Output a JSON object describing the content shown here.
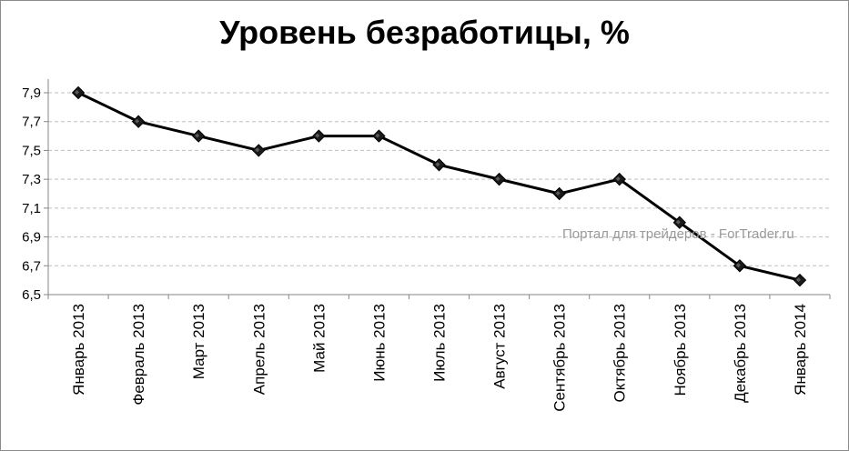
{
  "chart_data": {
    "type": "line",
    "title": "Уровень безработицы, %",
    "watermark": "Портал для трейдеров - ForTrader.ru",
    "categories": [
      "Январь 2013",
      "Февраль 2013",
      "Март 2013",
      "Апрель 2013",
      "Май 2013",
      "Июнь 2013",
      "Июль 2013",
      "Август 2013",
      "Сентябрь 2013",
      "Октябрь 2013",
      "Ноябрь 2013",
      "Декабрь 2013",
      "Январь 2014"
    ],
    "series": [
      {
        "values": [
          7.9,
          7.7,
          7.6,
          7.5,
          7.6,
          7.6,
          7.4,
          7.3,
          7.2,
          7.3,
          7.0,
          6.7,
          6.6
        ]
      }
    ],
    "ylim": [
      6.5,
      7.9
    ],
    "y_ticks": [
      "6,5",
      "6,7",
      "6,9",
      "7,1",
      "7,3",
      "7,5",
      "7,7",
      "7,9"
    ],
    "grid": true,
    "legend": "none",
    "colors": {
      "line": "#000000",
      "marker": "#1a1a1a",
      "grid": "#bfbfbf",
      "axis": "#868686"
    }
  }
}
